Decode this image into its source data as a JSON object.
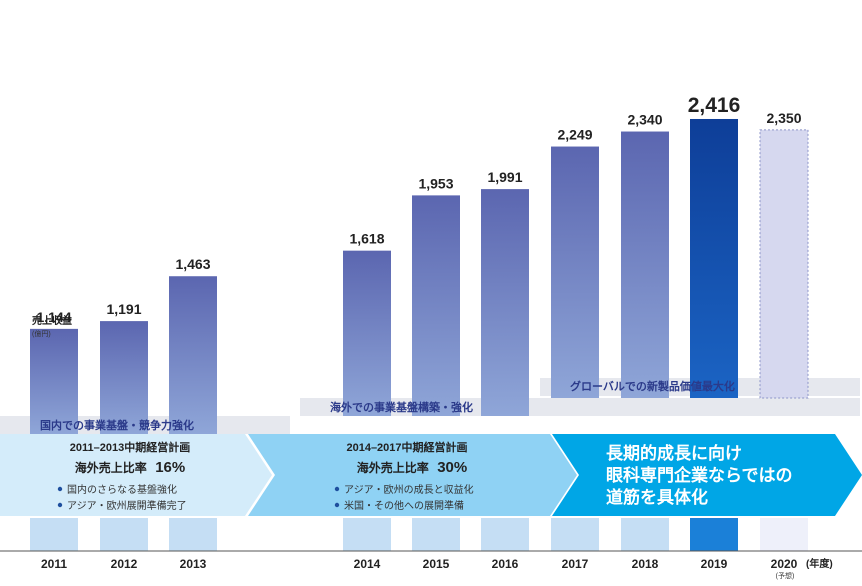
{
  "chart_data": {
    "type": "bar",
    "ylabel": "売上収益",
    "yunit": "(億円)",
    "xunit": "(年度)",
    "categories": [
      "2011",
      "2012",
      "2013",
      "2014",
      "2015",
      "2016",
      "2017",
      "2018",
      "2019",
      "2020"
    ],
    "category_notes": {
      "2020": "(予想)"
    },
    "values": [
      1144,
      1191,
      1463,
      1618,
      1953,
      1991,
      2249,
      2340,
      2416,
      2350
    ],
    "value_labels": [
      "1,144",
      "1,191",
      "1,463",
      "1,618",
      "1,953",
      "1,991",
      "2,249",
      "2,340",
      "2,416",
      "2,350"
    ],
    "highlight": "2019",
    "forecast": "2020",
    "colors": {
      "bar_top": "#5b66b0",
      "bar_bottom": "#8fa6d8",
      "highlight_top": "#0e3e98",
      "highlight_bottom": "#1b64c4",
      "forecast": "#d6d8ef"
    }
  },
  "bands": {
    "b1": "国内での事業基盤・競争力強化",
    "b2": "海外での事業基盤構築・強化",
    "b3": "グローバルでの新製品価値最大化"
  },
  "plans": {
    "p1": {
      "title": "2011–2013中期経営計画",
      "ratio_label": "海外売上比率",
      "ratio": "16%",
      "items": [
        "国内のさらなる基盤強化",
        "アジア・欧州展開準備完了"
      ]
    },
    "p2": {
      "title": "2014–2017中期経営計画",
      "ratio_label": "海外売上比率",
      "ratio": "30%",
      "items": [
        "アジア・欧州の成長と収益化",
        "米国・その他への展開準備"
      ]
    },
    "p3": {
      "lines": [
        "長期的成長に向け",
        "眼科専門企業ならではの",
        "道筋を具体化"
      ]
    }
  }
}
